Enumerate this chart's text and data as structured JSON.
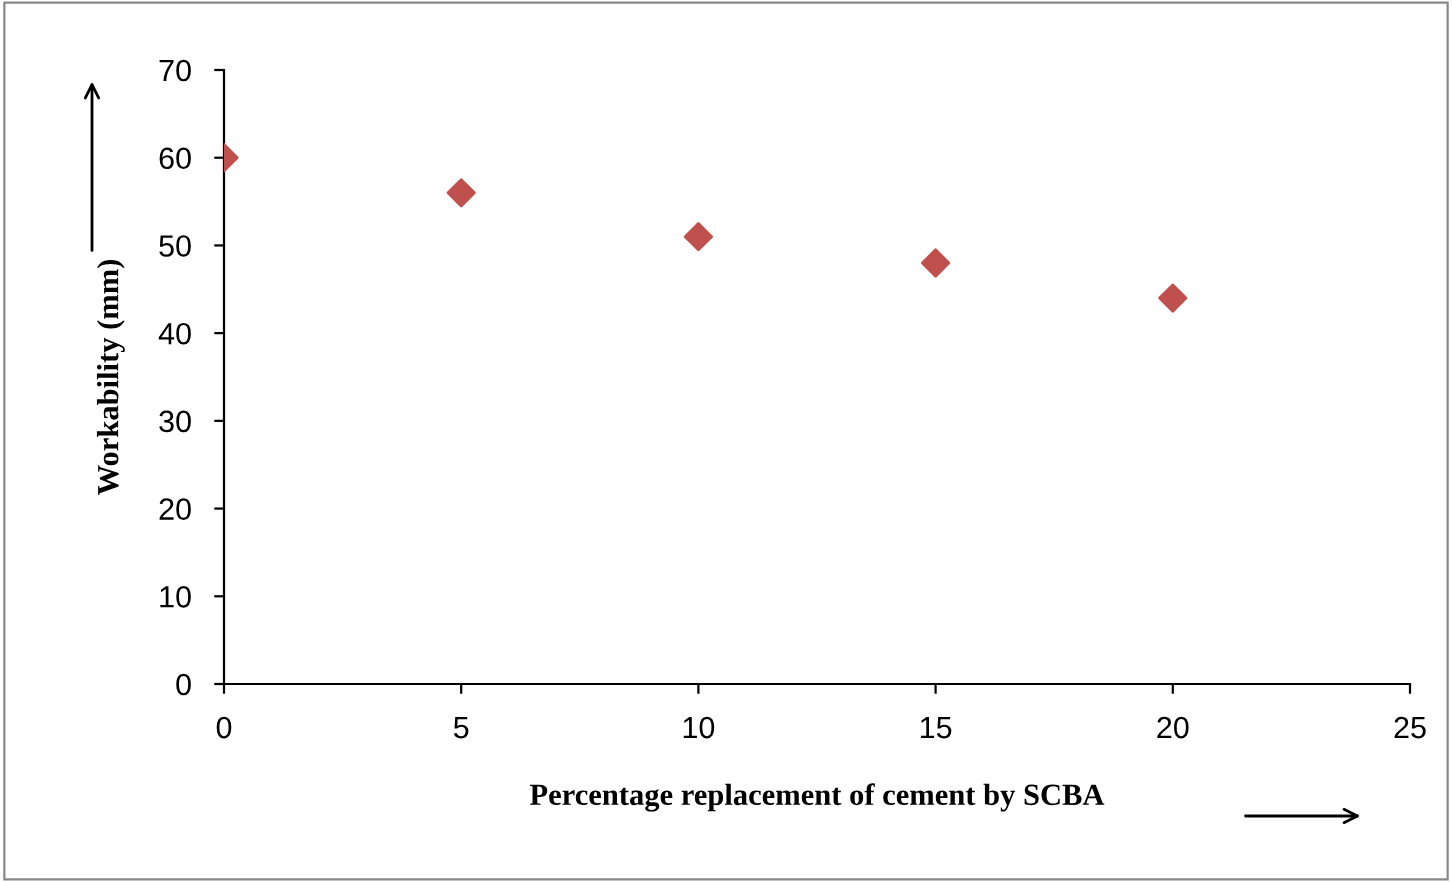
{
  "chart_data": {
    "type": "scatter",
    "xlabel": "Percentage replacement of cement by SCBA",
    "ylabel": "Workability (mm)",
    "x": [
      0,
      5,
      10,
      15,
      20
    ],
    "series": [
      {
        "color": "#c0504d",
        "values": [
          60,
          56,
          51,
          48,
          44
        ]
      }
    ],
    "xlim": [
      0,
      25
    ],
    "xticks": [
      0,
      5,
      10,
      15,
      20,
      25
    ],
    "ylim": [
      0,
      70
    ],
    "yticks": [
      0,
      10,
      20,
      30,
      40,
      50,
      60,
      70
    ],
    "marker": "diamond",
    "grid": false,
    "legend": false
  }
}
